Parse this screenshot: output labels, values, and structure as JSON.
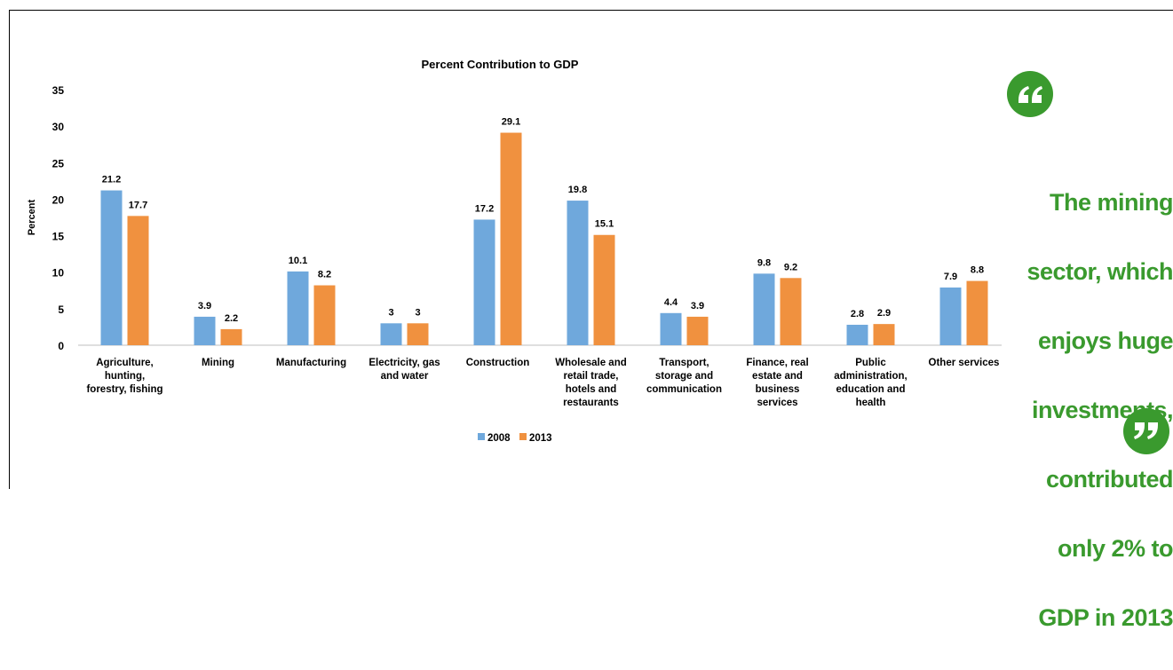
{
  "chart_data": {
    "type": "bar",
    "title": "Percent Contribution to GDP",
    "xlabel": "",
    "ylabel": "Percent",
    "ylim": [
      0,
      35
    ],
    "yticks": [
      0,
      5,
      10,
      15,
      20,
      25,
      30,
      35
    ],
    "grid": false,
    "legend_position": "bottom",
    "categories": [
      [
        "Agriculture,",
        "hunting,",
        "forestry, fishing"
      ],
      [
        "Mining"
      ],
      [
        "Manufacturing"
      ],
      [
        "Electricity, gas",
        "and water"
      ],
      [
        "Construction"
      ],
      [
        "Wholesale and",
        "retail trade,",
        "hotels and",
        "restaurants"
      ],
      [
        "Transport,",
        "storage and",
        "communication"
      ],
      [
        "Finance, real",
        "estate and",
        "business",
        "services"
      ],
      [
        "Public",
        "administration,",
        "education and",
        "health"
      ],
      [
        "Other services"
      ]
    ],
    "series": [
      {
        "name": "2008",
        "color": "#6fa8dc",
        "values": [
          21.2,
          3.9,
          10.1,
          3,
          17.2,
          19.8,
          4.4,
          9.8,
          2.8,
          7.9
        ],
        "labels": [
          "21.2",
          "3.9",
          "10.1",
          "3",
          "17.2",
          "19.8",
          "4.4",
          "9.8",
          "2.8",
          "7.9"
        ]
      },
      {
        "name": "2013",
        "color": "#f0913f",
        "values": [
          17.7,
          2.2,
          8.2,
          3,
          29.1,
          15.1,
          3.9,
          9.2,
          2.9,
          8.8
        ],
        "labels": [
          "17.7",
          "2.2",
          "8.2",
          "3",
          "29.1",
          "15.1",
          "3.9",
          "9.2",
          "2.9",
          "8.8"
        ]
      }
    ]
  },
  "quote": {
    "lines": [
      "The mining",
      "sector, which",
      "enjoys huge",
      "investments,",
      "contributed",
      "only 2% to",
      "GDP in 2013"
    ],
    "color": "#3a9a2e",
    "open_icon": "open-quote-icon",
    "close_icon": "close-quote-icon"
  }
}
